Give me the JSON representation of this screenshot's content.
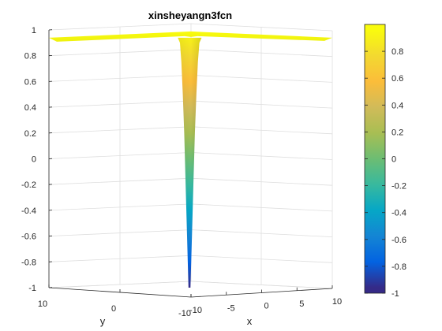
{
  "chart_data": {
    "type": "surface3d",
    "title": "xinsheyangn3fcn",
    "xlabel": "x",
    "ylabel": "y",
    "zlabel": "",
    "xlim": [
      -10,
      10
    ],
    "ylim": [
      -10,
      10
    ],
    "zlim": [
      -1,
      1
    ],
    "x_ticks": [
      -10,
      -5,
      0,
      5,
      10
    ],
    "y_ticks": [
      -10,
      0,
      10
    ],
    "z_ticks": [
      -1,
      -0.8,
      -0.6,
      -0.4,
      -0.2,
      0,
      0.2,
      0.4,
      0.6,
      0.8,
      1
    ],
    "surface": {
      "description_values": {
        "plateau_z": 0.97,
        "minimum": {
          "x": 0,
          "y": 0,
          "z": -1
        }
      },
      "profile_z_vs_radius": [
        {
          "r": 0.0,
          "z": -1.0
        },
        {
          "r": 0.2,
          "z": -0.6
        },
        {
          "r": 0.4,
          "z": -0.2
        },
        {
          "r": 0.6,
          "z": 0.2
        },
        {
          "r": 0.8,
          "z": 0.5
        },
        {
          "r": 1.0,
          "z": 0.75
        },
        {
          "r": 1.2,
          "z": 0.9
        },
        {
          "r": 1.5,
          "z": 0.97
        }
      ]
    },
    "colorbar": {
      "ticks": [
        -1,
        -0.8,
        -0.6,
        -0.4,
        -0.2,
        0,
        0.2,
        0.4,
        0.6,
        0.8
      ],
      "range": [
        -1,
        1
      ],
      "colormap": "parula"
    },
    "grid": true,
    "colors": {
      "surface_top": "#f9fb0e",
      "axis": "#262626",
      "grid": "#dedede"
    }
  }
}
